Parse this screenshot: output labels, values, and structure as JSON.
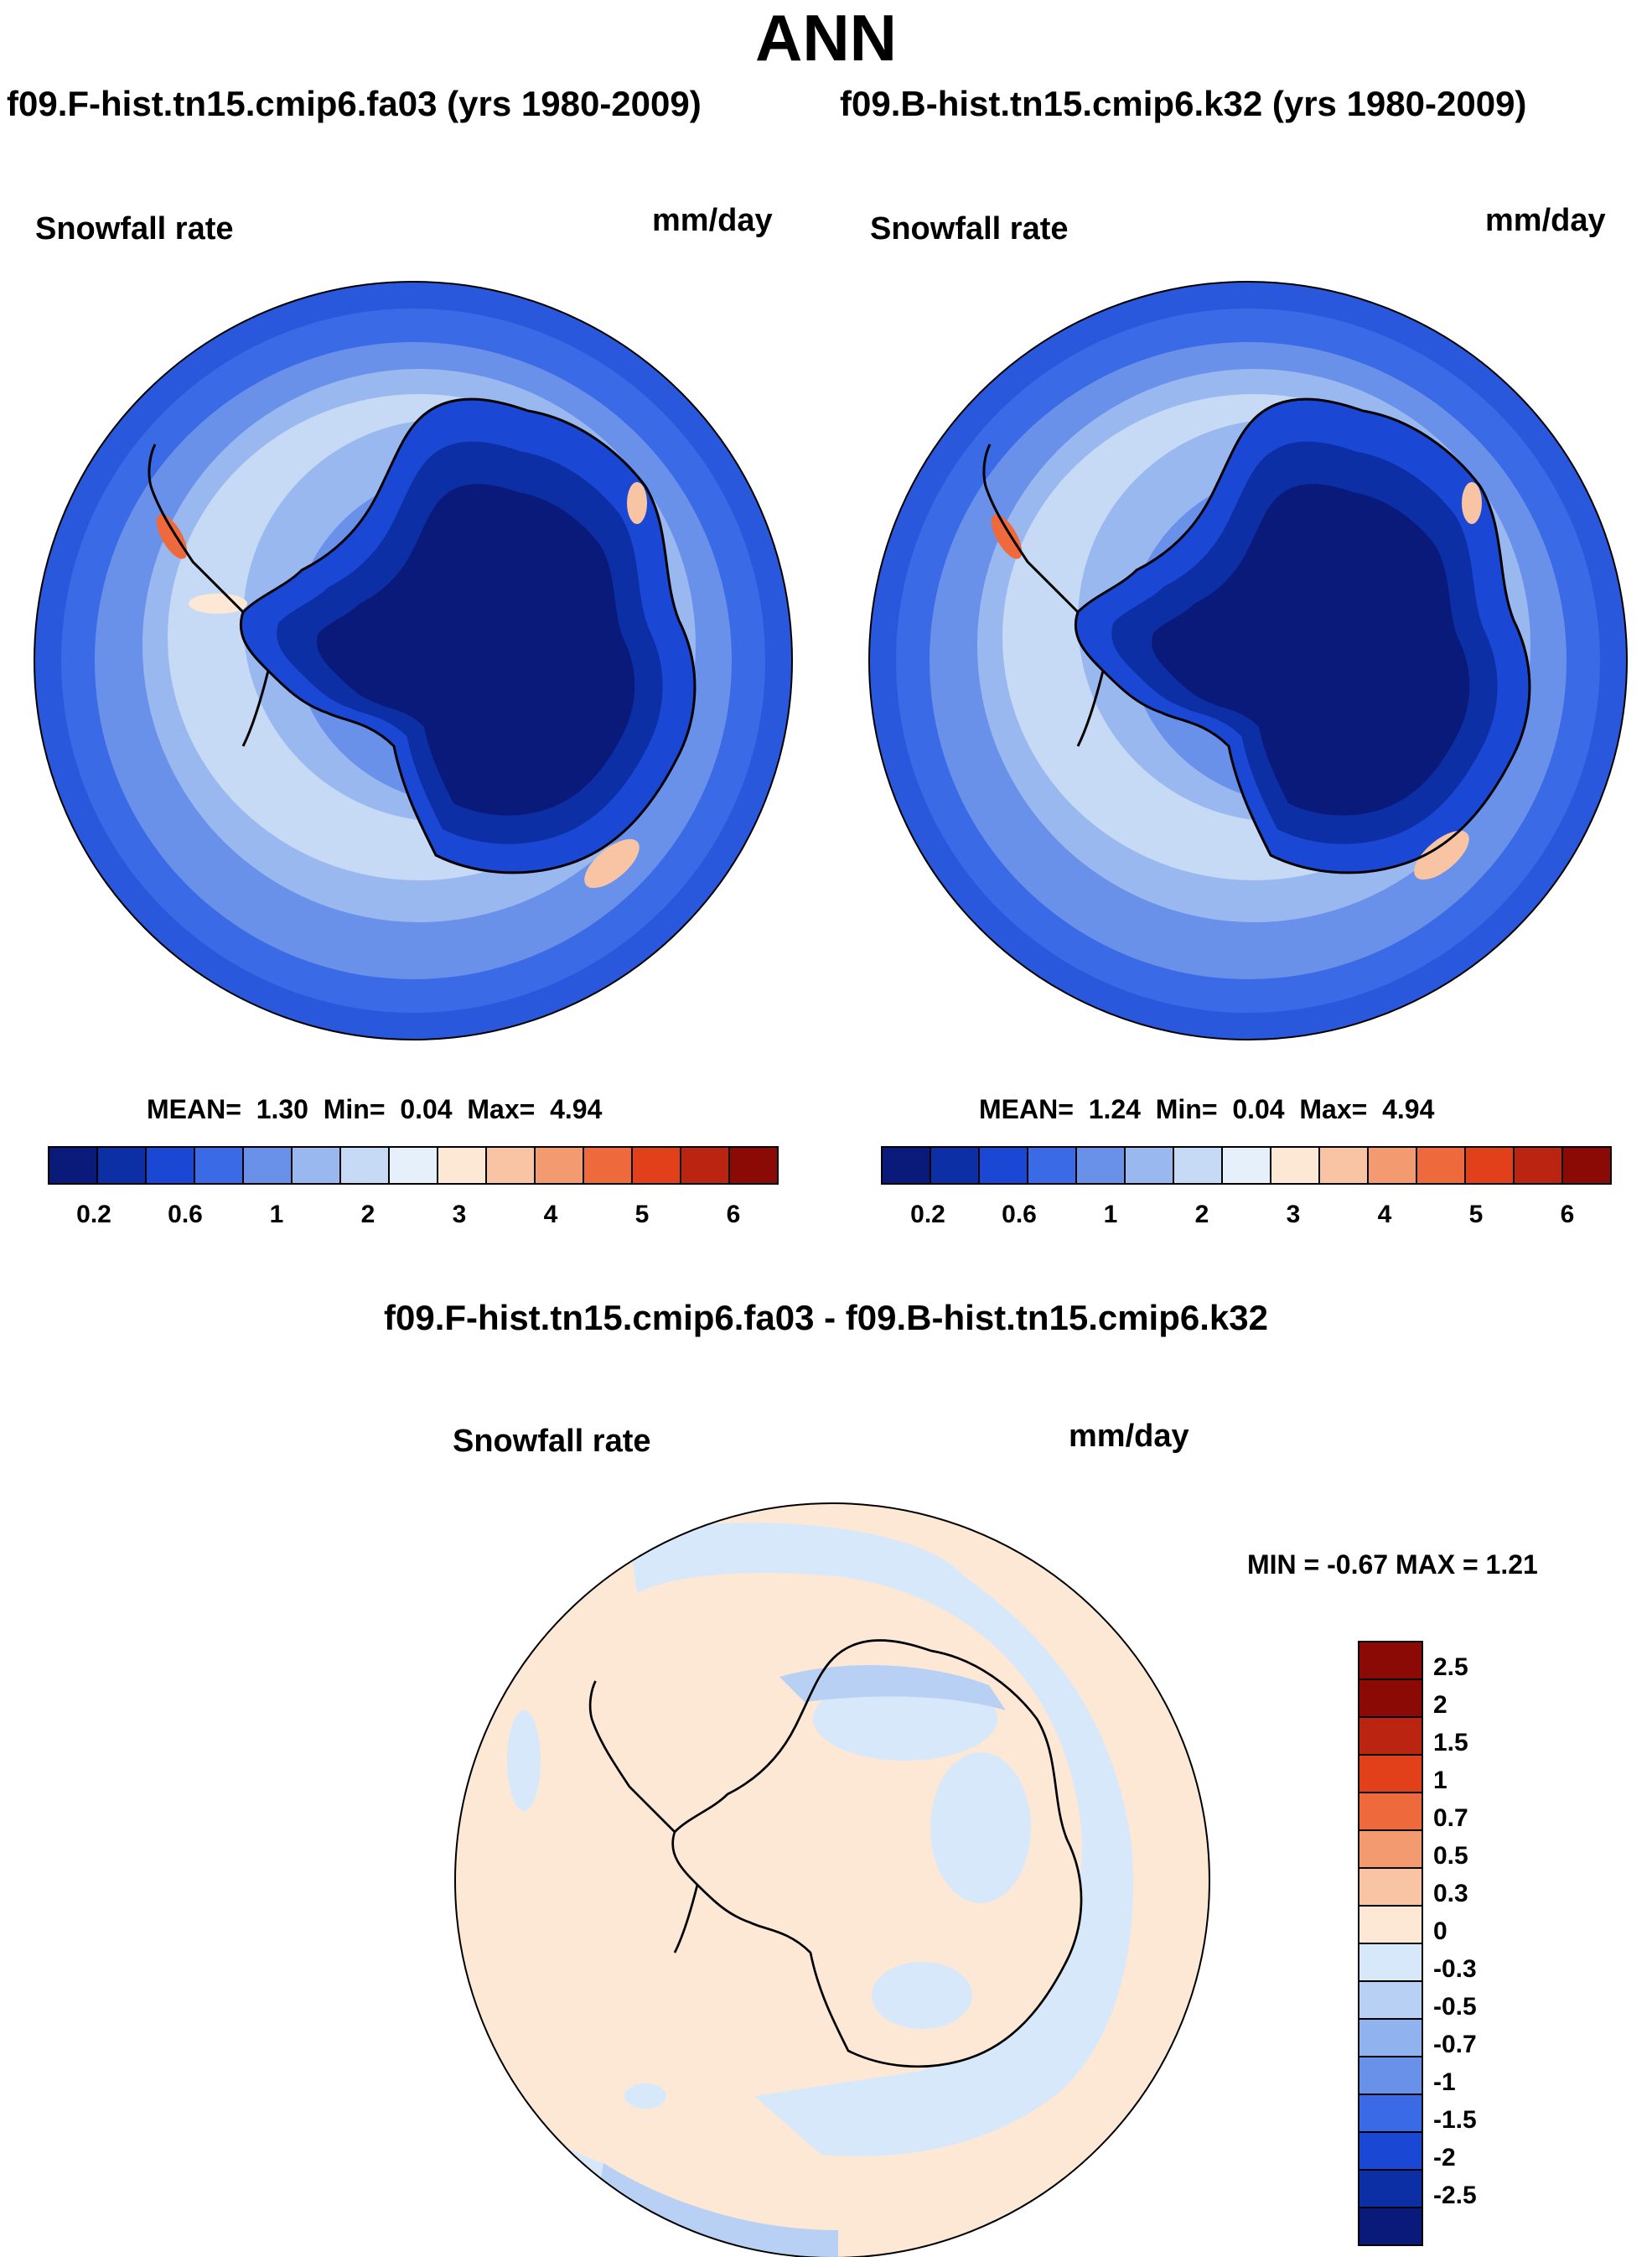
{
  "title": "ANN",
  "panels": [
    {
      "case_title": "f09.F-hist.tn15.cmip6.fa03 (yrs 1980-2009)",
      "variable": "Snowfall rate",
      "units": "mm/day",
      "stats": {
        "mean_label": "MEAN=",
        "mean": "1.30",
        "min_label": "Min=",
        "min": "0.04",
        "max_label": "Max=",
        "max": "4.94"
      }
    },
    {
      "case_title": "f09.B-hist.tn15.cmip6.k32 (yrs 1980-2009)",
      "variable": "Snowfall rate",
      "units": "mm/day",
      "stats": {
        "mean_label": "MEAN=",
        "mean": "1.24",
        "min_label": "Min=",
        "min": "0.04",
        "max_label": "Max=",
        "max": "4.94"
      }
    }
  ],
  "colorbar": {
    "colors": [
      "#0a1a7a",
      "#0d2fa6",
      "#1a48d4",
      "#3a6ae6",
      "#6a91ea",
      "#9ab8f0",
      "#c6daf6",
      "#e6f0fb",
      "#fde8d6",
      "#f8c4a4",
      "#f39a70",
      "#ee6a3c",
      "#e2401a",
      "#bb2410",
      "#8b0a06"
    ],
    "labels": [
      "0.2",
      "0.6",
      "1",
      "2",
      "3",
      "4",
      "5",
      "6"
    ]
  },
  "difference": {
    "title": "f09.F-hist.tn15.cmip6.fa03 - f09.B-hist.tn15.cmip6.k32",
    "variable": "Snowfall rate",
    "units": "mm/day",
    "min_max": "MIN =  -0.67 MAX =   1.21",
    "colorbar": {
      "colors": [
        "#8b0a06",
        "#bb2410",
        "#e2401a",
        "#ee6a3c",
        "#f39a70",
        "#f8c4a4",
        "#fde8d6",
        "#d6e8fa",
        "#b8d0f4",
        "#90b2ee",
        "#6a91ea",
        "#3a6ae6",
        "#1a48d4",
        "#0d2fa6",
        "#0a1a7a"
      ],
      "labels": [
        "2.5",
        "2",
        "1.5",
        "1",
        "0.7",
        "0.5",
        "0.3",
        "0",
        "-0.3",
        "-0.5",
        "-0.7",
        "-1",
        "-1.5",
        "-2",
        "-2.5"
      ]
    }
  }
}
